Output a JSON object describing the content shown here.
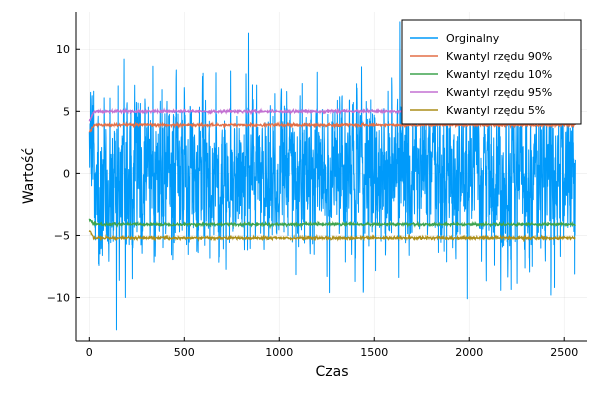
{
  "chart_data": {
    "type": "line",
    "title": "",
    "xlabel": "Czas",
    "ylabel": "Wartość",
    "xlim": [
      -70,
      2620
    ],
    "ylim": [
      -13.5,
      13
    ],
    "x_ticks": [
      0,
      500,
      1000,
      1500,
      2000,
      2500
    ],
    "x_tick_labels": [
      "0",
      "500",
      "1000",
      "1500",
      "2000",
      "2500"
    ],
    "y_ticks": [
      -10,
      -5,
      0,
      5,
      10
    ],
    "y_tick_labels": [
      "−10",
      "−5",
      "0",
      "5",
      "10"
    ],
    "grid": true,
    "legend_position": "top-right",
    "n_points": 2560,
    "series": [
      {
        "name": "Orginalny",
        "color": "#009AFA",
        "values_range": [
          -12.6,
          12.2
        ],
        "extremes": [
          {
            "x": 143,
            "y": -12.6
          },
          {
            "x": 838,
            "y": 11.3
          },
          {
            "x": 1635,
            "y": 12.2
          },
          {
            "x": 1990,
            "y": -10.1
          },
          {
            "x": 2430,
            "y": -9.8
          },
          {
            "x": 1265,
            "y": -9.6
          },
          {
            "x": 190,
            "y": -10.0
          },
          {
            "x": 2555,
            "y": -8.1
          }
        ]
      },
      {
        "name": "Kwantyl rzędu 90%",
        "color": "#E36F47",
        "level": 3.9,
        "initial": 3.3
      },
      {
        "name": "Kwantyl rzędu 10%",
        "color": "#3EA44E",
        "level": -4.1,
        "initial": -3.7
      },
      {
        "name": "Kwantyl rzędu 95%",
        "color": "#C371D2",
        "level": 5.0,
        "initial": 4.2
      },
      {
        "name": "Kwantyl rzędu 5%",
        "color": "#AC8E18",
        "level": -5.2,
        "initial": -4.6
      }
    ]
  }
}
